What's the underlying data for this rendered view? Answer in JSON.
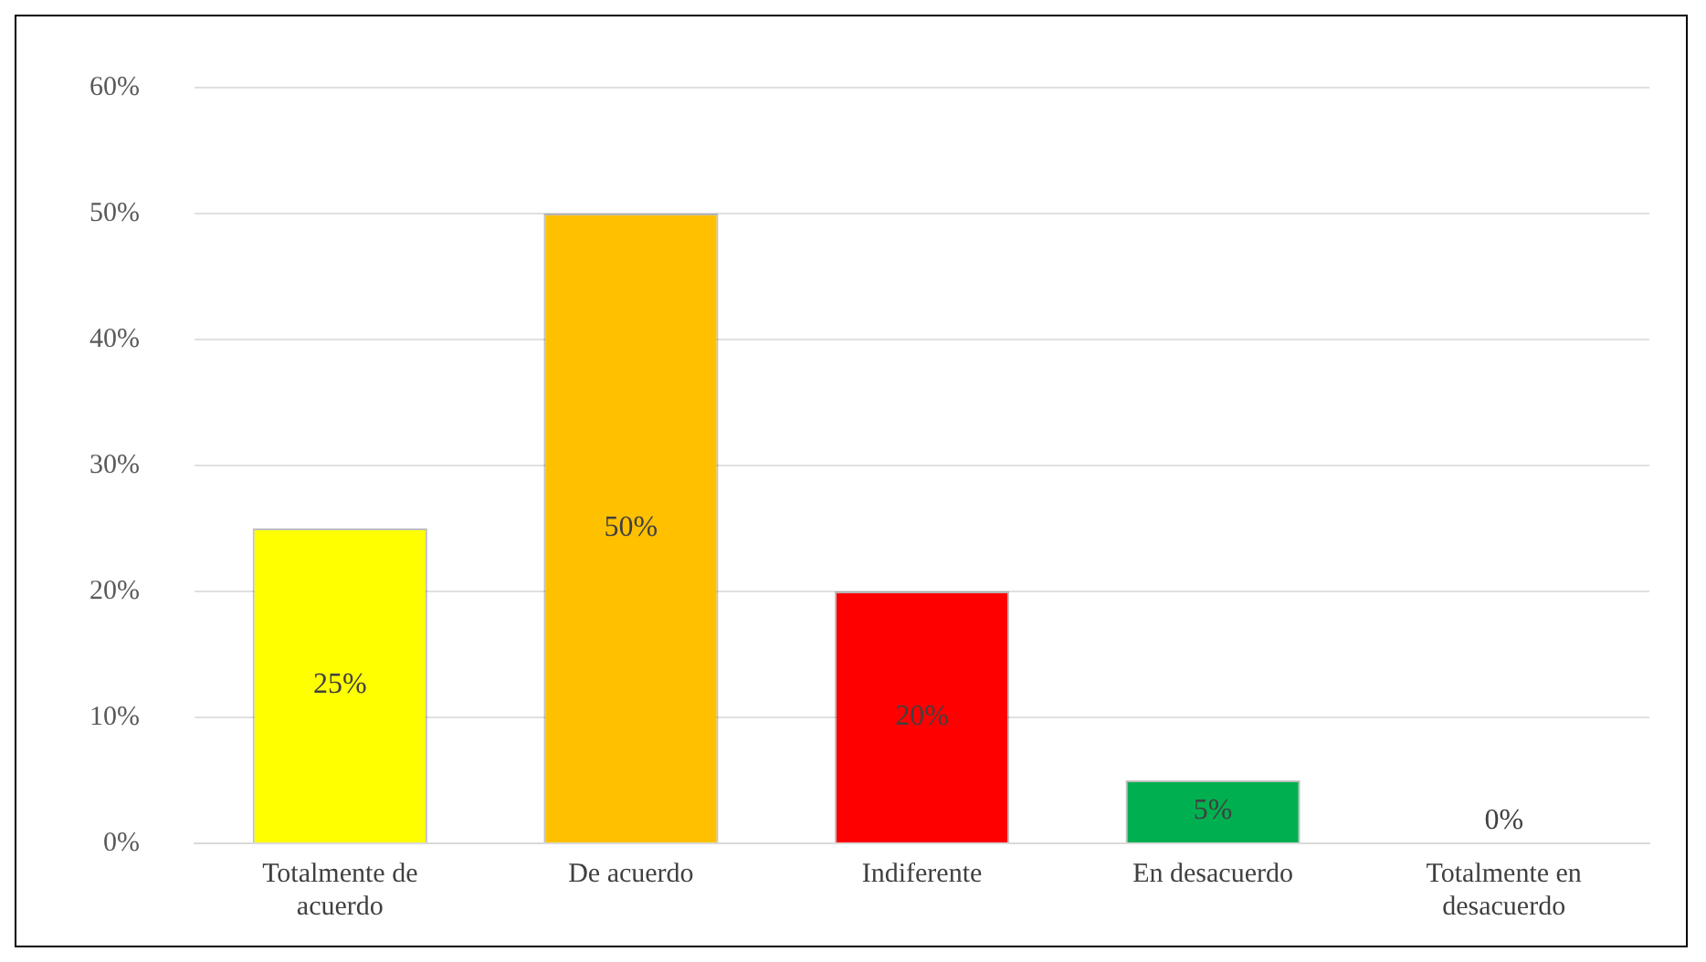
{
  "chart_data": {
    "type": "bar",
    "categories": [
      "Totalmente de acuerdo",
      "De acuerdo",
      "Indiferente",
      "En desacuerdo",
      "Totalmente en desacuerdo"
    ],
    "values": [
      25,
      50,
      20,
      5,
      0
    ],
    "colors": [
      "#ffff00",
      "#ffc000",
      "#ff0000",
      "#00b050",
      "#a5a5a5"
    ],
    "value_labels": [
      "25%",
      "50%",
      "20%",
      "5%",
      "0%"
    ],
    "ylim": [
      0,
      60
    ],
    "yticks": [
      {
        "value": 0,
        "label": "0%"
      },
      {
        "value": 10,
        "label": "10%"
      },
      {
        "value": 20,
        "label": "20%"
      },
      {
        "value": 30,
        "label": "30%"
      },
      {
        "value": 40,
        "label": "40%"
      },
      {
        "value": 50,
        "label": "50%"
      },
      {
        "value": 60,
        "label": "60%"
      }
    ],
    "grid": "y",
    "legend": false
  }
}
